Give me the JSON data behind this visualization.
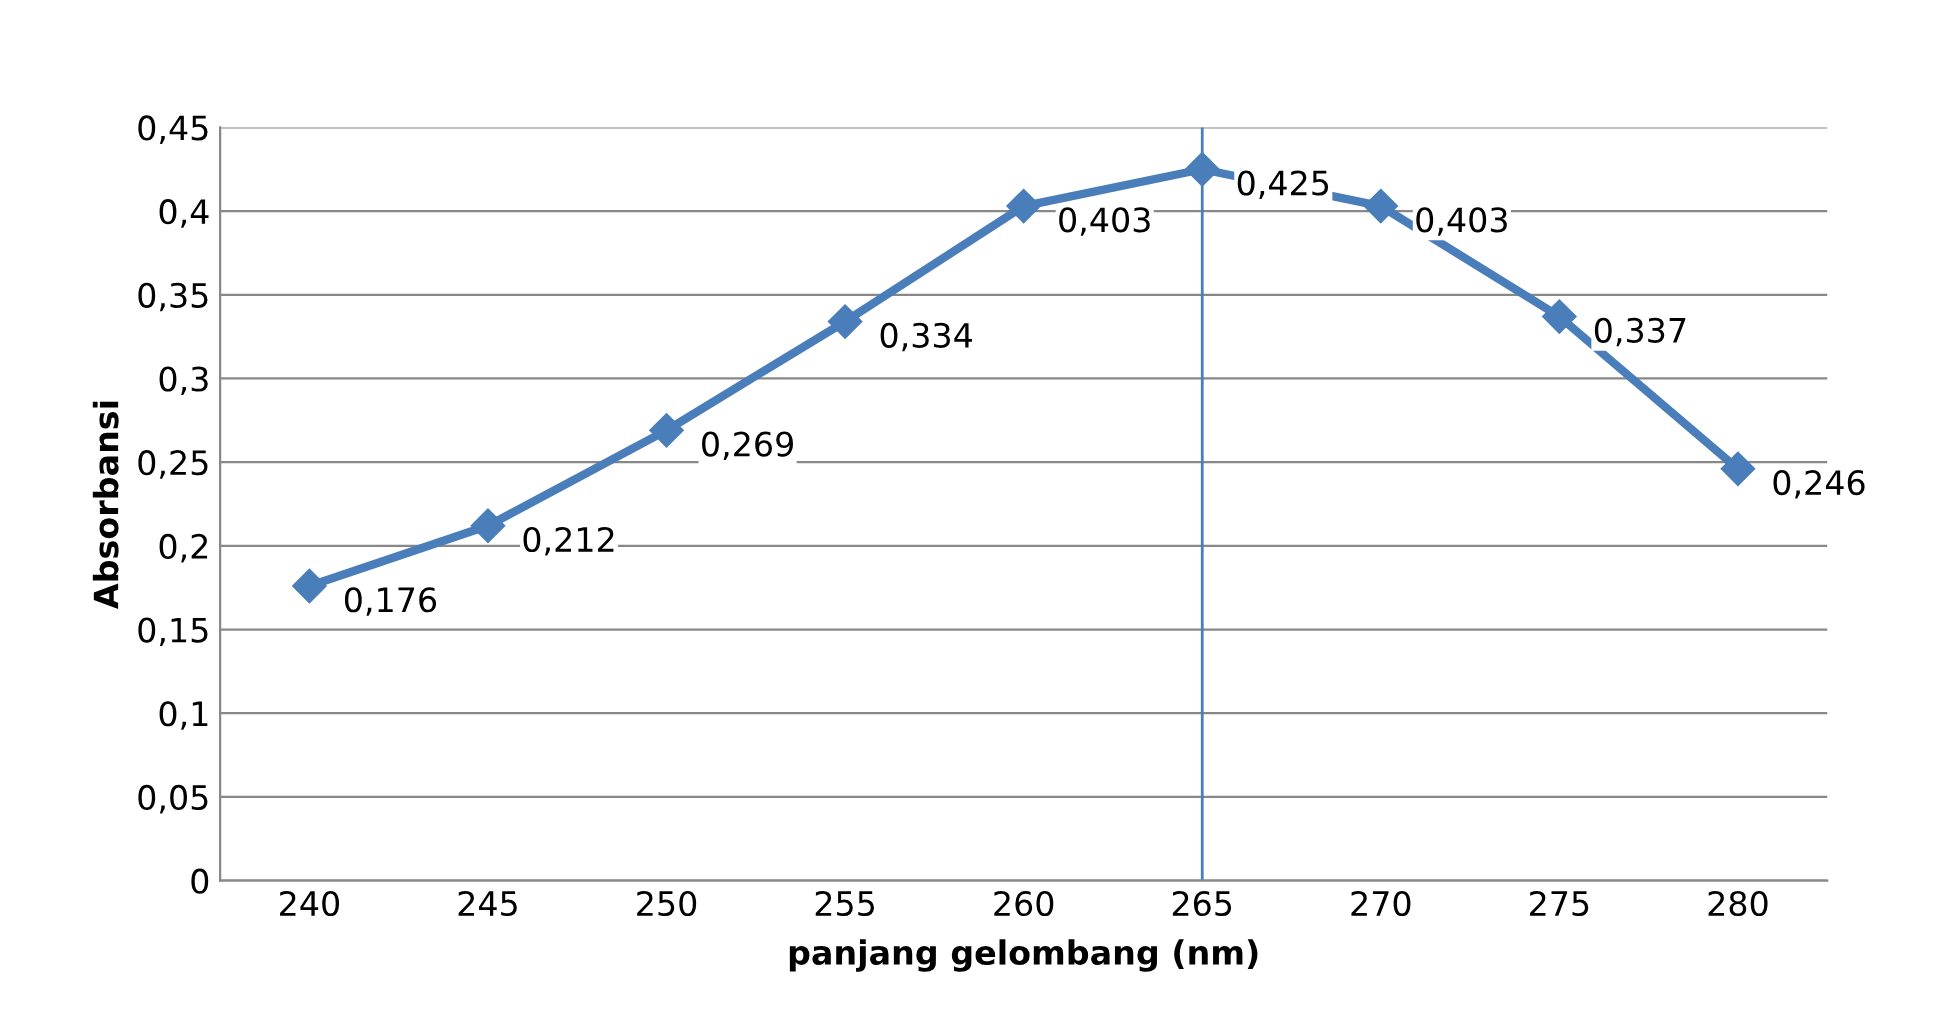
{
  "chart_data": {
    "type": "line",
    "xlabel": "panjang gelombang (nm)",
    "ylabel": "Absorbansi",
    "categories": [
      "240",
      "245",
      "250",
      "255",
      "260",
      "265",
      "270",
      "275",
      "280"
    ],
    "series": [
      {
        "color": "#4a7ebb",
        "values": [
          0.176,
          0.212,
          0.269,
          0.334,
          0.403,
          0.425,
          0.403,
          0.337,
          0.246
        ],
        "value_labels": [
          "0,176",
          "0,212",
          "0,269",
          "0,334",
          "0,403",
          "0,425",
          "0,403",
          "0,337",
          "0,246"
        ]
      }
    ],
    "ylim": [
      0,
      0.45
    ],
    "yticks": [
      {
        "value": 0,
        "label": "0"
      },
      {
        "value": 0.05,
        "label": "0,05"
      },
      {
        "value": 0.1,
        "label": "0,1"
      },
      {
        "value": 0.15,
        "label": "0,15"
      },
      {
        "value": 0.2,
        "label": "0,2"
      },
      {
        "value": 0.25,
        "label": "0,25"
      },
      {
        "value": 0.3,
        "label": "0,3"
      },
      {
        "value": 0.35,
        "label": "0,35"
      },
      {
        "value": 0.4,
        "label": "0,4"
      },
      {
        "value": 0.45,
        "label": "0,45"
      }
    ],
    "ref_lines": [
      {
        "axis": "x",
        "value": "265",
        "color": "#4a7ebb"
      }
    ],
    "grid": "y",
    "marker": "diamond",
    "line_style": "solid",
    "legend": false
  }
}
